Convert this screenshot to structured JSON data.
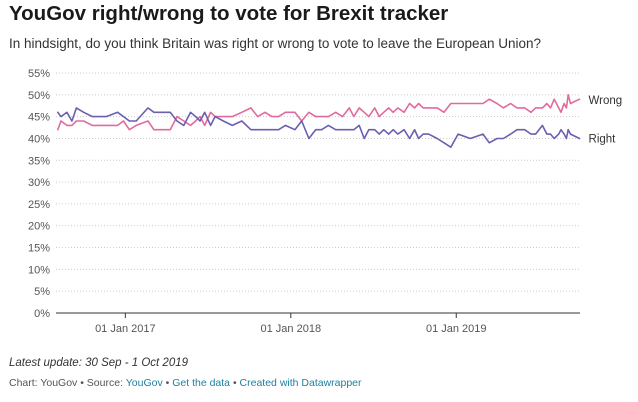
{
  "title": "YouGov right/wrong to vote for Brexit tracker",
  "subtitle": "In hindsight, do you think Britain was right or wrong to vote to leave the European Union?",
  "footer": {
    "update": "Latest update: 30 Sep - 1 Oct 2019",
    "chart_prefix": "Chart: YouGov • Source: ",
    "source_link": "YouGov",
    "sep1": " • ",
    "get_data": "Get the data",
    "sep2": " • ",
    "datawrapper": "Created with Datawrapper"
  },
  "chart_data": {
    "type": "line",
    "title": "YouGov right/wrong to vote for Brexit tracker",
    "subtitle": "In hindsight, do you think Britain was right or wrong to vote to leave the European Union?",
    "xlabel": "",
    "ylabel": "",
    "xlim": [
      "2016-08-01",
      "2019-10-01"
    ],
    "ylim": [
      0,
      55
    ],
    "yticks": [
      0,
      5,
      10,
      15,
      20,
      25,
      30,
      35,
      40,
      45,
      50,
      55
    ],
    "ytick_labels": [
      "0%",
      "5%",
      "10%",
      "15%",
      "20%",
      "25%",
      "30%",
      "35%",
      "40%",
      "45%",
      "50%",
      "55%"
    ],
    "xticks": [
      "2017-01-01",
      "2018-01-01",
      "2019-01-01"
    ],
    "xtick_labels": [
      "01 Jan 2017",
      "01 Jan 2018",
      "01 Jan 2019"
    ],
    "grid": "horizontal dotted",
    "legend": "series labels at line ends (right)",
    "series": [
      {
        "name": "Wrong",
        "color": "#e06b9d",
        "points": [
          [
            "2016-08-05",
            42
          ],
          [
            "2016-08-12",
            44
          ],
          [
            "2016-08-25",
            43
          ],
          [
            "2016-09-05",
            43
          ],
          [
            "2016-09-15",
            44
          ],
          [
            "2016-10-01",
            44
          ],
          [
            "2016-10-20",
            43
          ],
          [
            "2016-11-20",
            43
          ],
          [
            "2016-12-15",
            43
          ],
          [
            "2016-12-28",
            44
          ],
          [
            "2017-01-10",
            42
          ],
          [
            "2017-01-25",
            43
          ],
          [
            "2017-02-20",
            44
          ],
          [
            "2017-03-05",
            42
          ],
          [
            "2017-03-20",
            42
          ],
          [
            "2017-04-10",
            42
          ],
          [
            "2017-04-25",
            45
          ],
          [
            "2017-05-10",
            44
          ],
          [
            "2017-05-25",
            43
          ],
          [
            "2017-06-05",
            44
          ],
          [
            "2017-06-15",
            45
          ],
          [
            "2017-06-25",
            43
          ],
          [
            "2017-07-08",
            46
          ],
          [
            "2017-07-18",
            45
          ],
          [
            "2017-08-05",
            45
          ],
          [
            "2017-08-25",
            45
          ],
          [
            "2017-09-15",
            46
          ],
          [
            "2017-10-05",
            47
          ],
          [
            "2017-10-20",
            45
          ],
          [
            "2017-11-05",
            46
          ],
          [
            "2017-11-20",
            45
          ],
          [
            "2017-12-05",
            45
          ],
          [
            "2017-12-20",
            46
          ],
          [
            "2018-01-10",
            46
          ],
          [
            "2018-01-25",
            44
          ],
          [
            "2018-02-10",
            46
          ],
          [
            "2018-02-25",
            45
          ],
          [
            "2018-03-10",
            45
          ],
          [
            "2018-03-25",
            45
          ],
          [
            "2018-04-10",
            46
          ],
          [
            "2018-04-25",
            45
          ],
          [
            "2018-05-10",
            47
          ],
          [
            "2018-05-20",
            45
          ],
          [
            "2018-06-01",
            47
          ],
          [
            "2018-06-12",
            46
          ],
          [
            "2018-06-22",
            45
          ],
          [
            "2018-07-05",
            47
          ],
          [
            "2018-07-15",
            45
          ],
          [
            "2018-07-25",
            46
          ],
          [
            "2018-08-05",
            47
          ],
          [
            "2018-08-15",
            46
          ],
          [
            "2018-08-25",
            47
          ],
          [
            "2018-09-08",
            46
          ],
          [
            "2018-09-20",
            48
          ],
          [
            "2018-10-01",
            47
          ],
          [
            "2018-10-10",
            48
          ],
          [
            "2018-10-20",
            47
          ],
          [
            "2018-11-01",
            47
          ],
          [
            "2018-11-20",
            47
          ],
          [
            "2018-12-05",
            46
          ],
          [
            "2018-12-20",
            48
          ],
          [
            "2019-01-05",
            48
          ],
          [
            "2019-02-01",
            48
          ],
          [
            "2019-03-01",
            48
          ],
          [
            "2019-03-15",
            49
          ],
          [
            "2019-04-01",
            48
          ],
          [
            "2019-04-15",
            47
          ],
          [
            "2019-05-01",
            48
          ],
          [
            "2019-05-15",
            47
          ],
          [
            "2019-06-01",
            47
          ],
          [
            "2019-06-15",
            46
          ],
          [
            "2019-06-25",
            47
          ],
          [
            "2019-07-10",
            47
          ],
          [
            "2019-07-20",
            48
          ],
          [
            "2019-07-28",
            47
          ],
          [
            "2019-08-05",
            49
          ],
          [
            "2019-08-15",
            47
          ],
          [
            "2019-08-20",
            46
          ],
          [
            "2019-08-27",
            48
          ],
          [
            "2019-09-01",
            47
          ],
          [
            "2019-09-05",
            50
          ],
          [
            "2019-09-10",
            48
          ],
          [
            "2019-09-30",
            49
          ]
        ]
      },
      {
        "name": "Right",
        "color": "#6b5fb0",
        "points": [
          [
            "2016-08-05",
            46
          ],
          [
            "2016-08-12",
            45
          ],
          [
            "2016-08-25",
            46
          ],
          [
            "2016-09-05",
            44
          ],
          [
            "2016-09-15",
            47
          ],
          [
            "2016-10-01",
            46
          ],
          [
            "2016-10-20",
            45
          ],
          [
            "2016-11-20",
            45
          ],
          [
            "2016-12-15",
            46
          ],
          [
            "2016-12-28",
            45
          ],
          [
            "2017-01-10",
            44
          ],
          [
            "2017-01-25",
            44
          ],
          [
            "2017-02-20",
            47
          ],
          [
            "2017-03-05",
            46
          ],
          [
            "2017-03-20",
            46
          ],
          [
            "2017-04-10",
            46
          ],
          [
            "2017-04-25",
            44
          ],
          [
            "2017-05-10",
            43
          ],
          [
            "2017-05-25",
            46
          ],
          [
            "2017-06-05",
            45
          ],
          [
            "2017-06-15",
            44
          ],
          [
            "2017-06-25",
            46
          ],
          [
            "2017-07-08",
            43
          ],
          [
            "2017-07-18",
            45
          ],
          [
            "2017-08-05",
            44
          ],
          [
            "2017-08-25",
            43
          ],
          [
            "2017-09-15",
            44
          ],
          [
            "2017-10-05",
            42
          ],
          [
            "2017-10-20",
            42
          ],
          [
            "2017-11-05",
            42
          ],
          [
            "2017-11-20",
            42
          ],
          [
            "2017-12-05",
            42
          ],
          [
            "2017-12-20",
            43
          ],
          [
            "2018-01-10",
            42
          ],
          [
            "2018-01-25",
            44
          ],
          [
            "2018-02-10",
            40
          ],
          [
            "2018-02-25",
            42
          ],
          [
            "2018-03-10",
            42
          ],
          [
            "2018-03-25",
            43
          ],
          [
            "2018-04-10",
            42
          ],
          [
            "2018-04-25",
            42
          ],
          [
            "2018-05-10",
            42
          ],
          [
            "2018-05-20",
            42
          ],
          [
            "2018-06-01",
            43
          ],
          [
            "2018-06-12",
            40
          ],
          [
            "2018-06-22",
            42
          ],
          [
            "2018-07-05",
            42
          ],
          [
            "2018-07-15",
            41
          ],
          [
            "2018-07-25",
            42
          ],
          [
            "2018-08-05",
            41
          ],
          [
            "2018-08-15",
            42
          ],
          [
            "2018-08-25",
            41
          ],
          [
            "2018-09-08",
            42
          ],
          [
            "2018-09-20",
            40
          ],
          [
            "2018-10-01",
            42
          ],
          [
            "2018-10-10",
            40
          ],
          [
            "2018-10-20",
            41
          ],
          [
            "2018-11-01",
            41
          ],
          [
            "2018-11-20",
            40
          ],
          [
            "2018-12-05",
            39
          ],
          [
            "2018-12-20",
            38
          ],
          [
            "2019-01-05",
            41
          ],
          [
            "2019-02-01",
            40
          ],
          [
            "2019-03-01",
            41
          ],
          [
            "2019-03-15",
            39
          ],
          [
            "2019-04-01",
            40
          ],
          [
            "2019-04-15",
            40
          ],
          [
            "2019-05-01",
            41
          ],
          [
            "2019-05-15",
            42
          ],
          [
            "2019-06-01",
            42
          ],
          [
            "2019-06-15",
            41
          ],
          [
            "2019-06-25",
            41
          ],
          [
            "2019-07-10",
            43
          ],
          [
            "2019-07-20",
            41
          ],
          [
            "2019-07-28",
            41
          ],
          [
            "2019-08-05",
            40
          ],
          [
            "2019-08-15",
            41
          ],
          [
            "2019-08-20",
            42
          ],
          [
            "2019-08-27",
            41
          ],
          [
            "2019-09-01",
            40
          ],
          [
            "2019-09-05",
            42
          ],
          [
            "2019-09-10",
            41
          ],
          [
            "2019-09-30",
            40
          ]
        ]
      }
    ]
  }
}
